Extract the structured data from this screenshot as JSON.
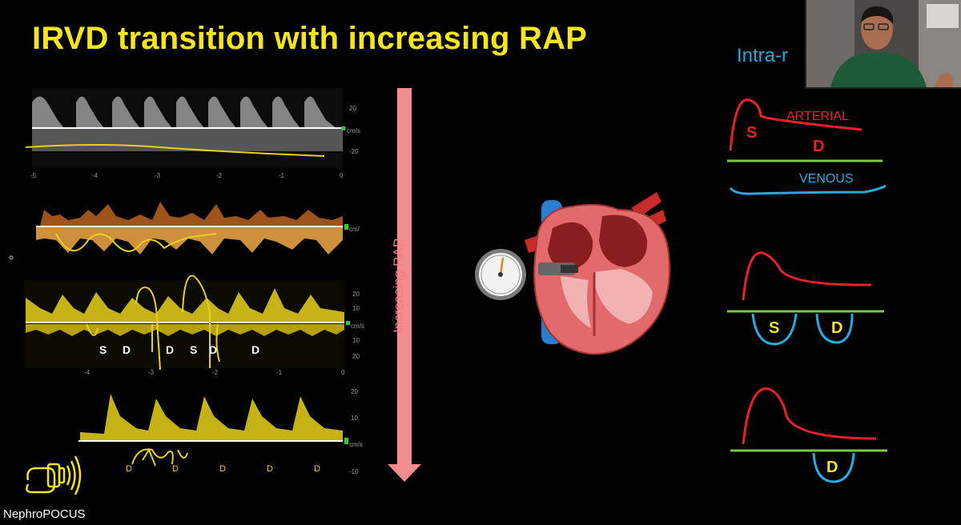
{
  "slide": {
    "title": "IRVD transition with increasing RAP",
    "side_heading": "Intra-r",
    "rap_label": "Increasing RAP",
    "brand": "NephroPOCUS"
  },
  "doppler_panels": {
    "panel1": {
      "ticks": [
        "20",
        "cm/s",
        "-20"
      ],
      "time_ticks": [
        "-5",
        "-4",
        "-3",
        "-2",
        "-1",
        "0"
      ]
    },
    "panel2": {
      "ticks": [
        "cm/"
      ]
    },
    "panel3": {
      "ticks": [
        "20",
        "10",
        "cm/s",
        "10",
        "20"
      ],
      "time_ticks": [
        "-4",
        "-3",
        "-2",
        "-1",
        "0"
      ],
      "annotations": [
        "S",
        "D",
        "D",
        "S",
        "D",
        "D"
      ]
    },
    "panel4": {
      "ticks": [
        "20",
        "10",
        "cm/s",
        "-10"
      ],
      "annotations": [
        "D",
        "D",
        "D",
        "D",
        "D"
      ]
    }
  },
  "schematic": {
    "arterial_label": "ARTERIAL",
    "venous_label": "VENOUS",
    "diagram1": {
      "s": "S",
      "d": "D"
    },
    "diagram2": {
      "s": "S",
      "d": "D"
    },
    "diagram3": {
      "d": "D"
    }
  },
  "colors": {
    "title": "#f5e61b",
    "arterial": "#e8202a",
    "venous": "#27a9e1",
    "baseline": "#7ac943",
    "arrow": "#f28b8b",
    "doppler_yellow": "#e8d21a",
    "doppler_orange": "#d98a2a"
  }
}
